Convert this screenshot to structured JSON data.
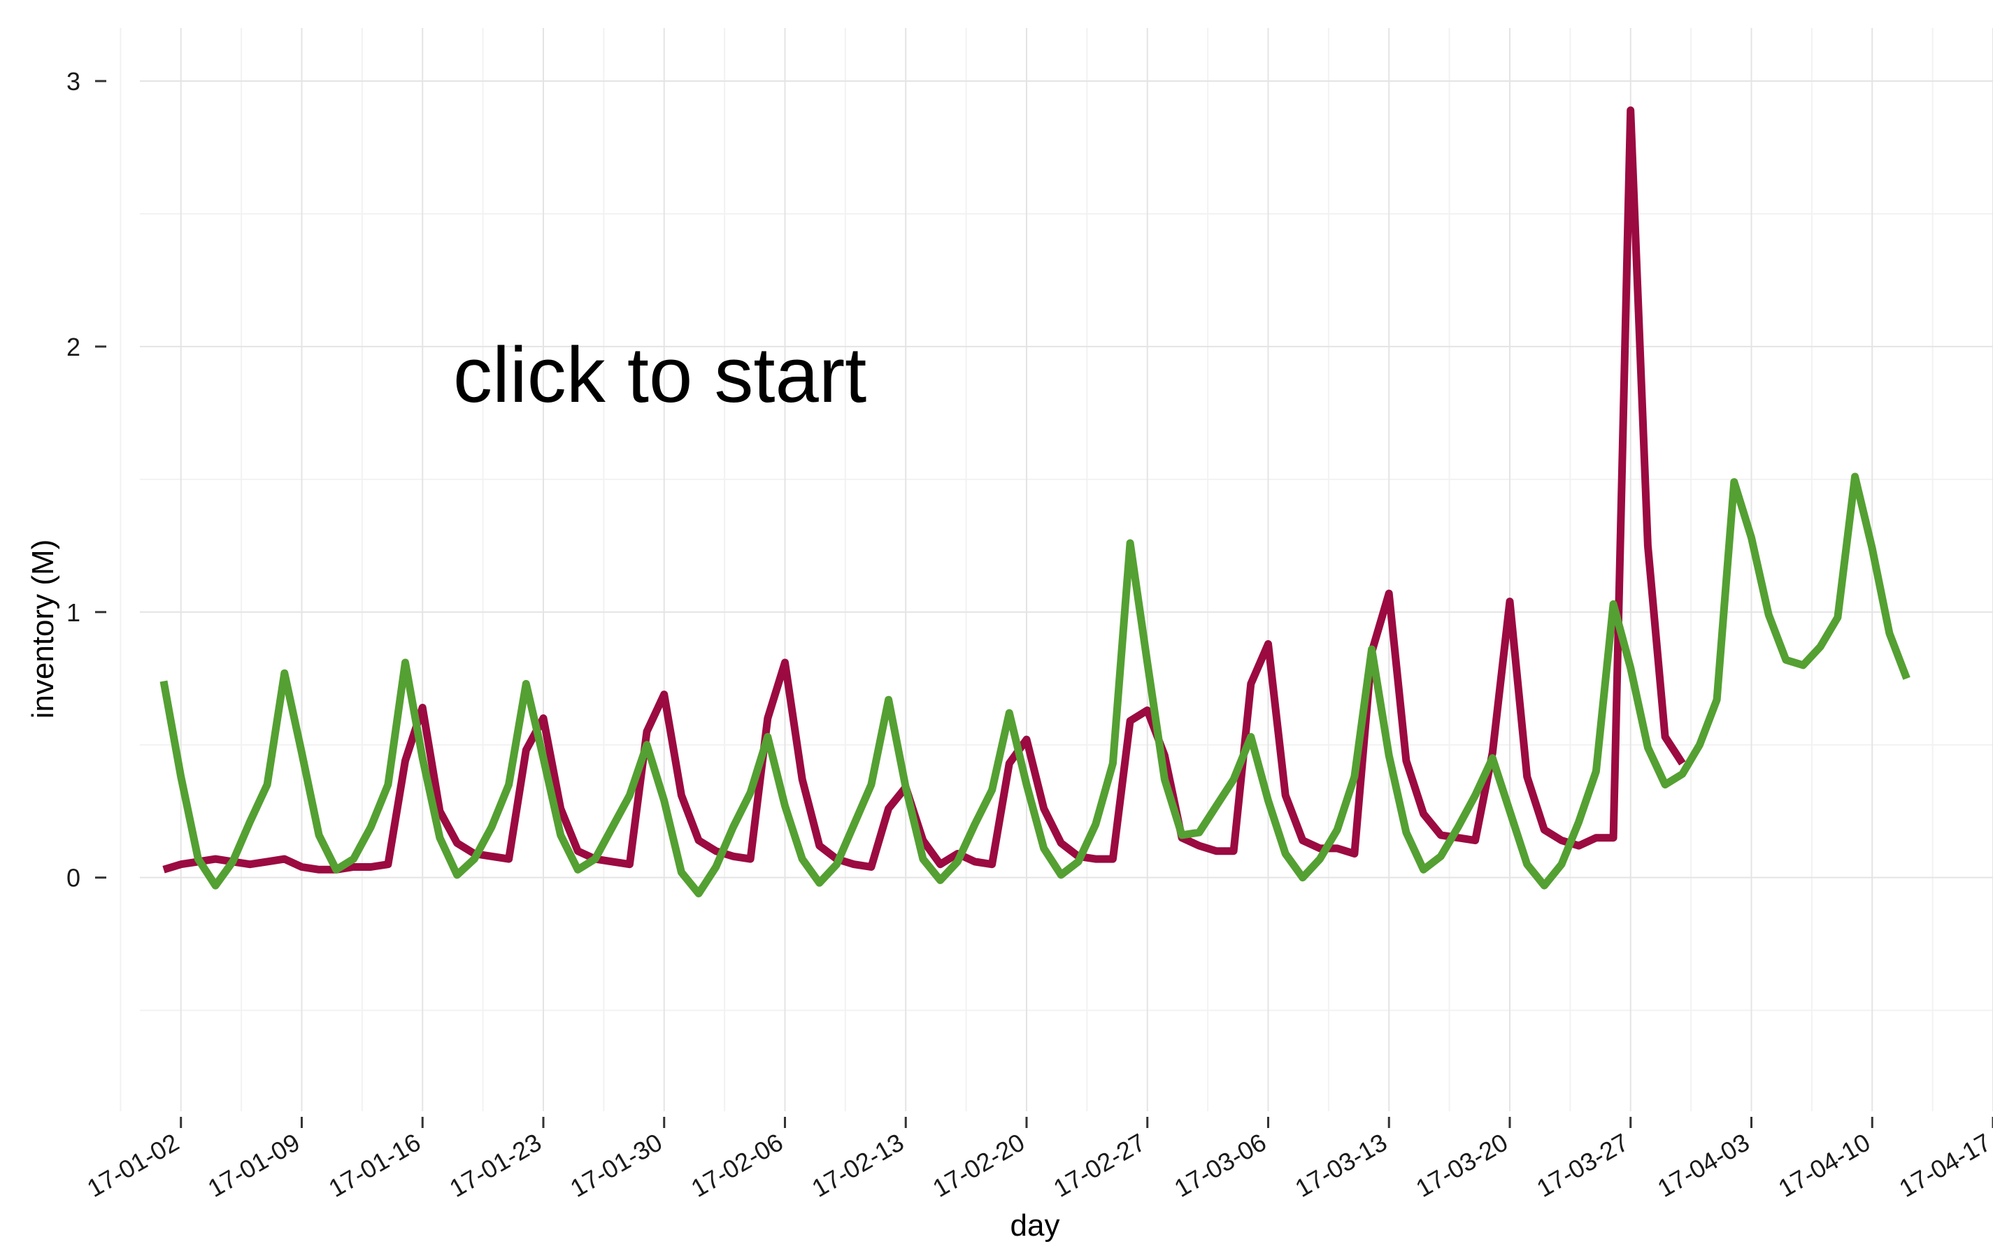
{
  "chart_data": {
    "type": "line",
    "xlabel": "day",
    "ylabel": "inventory (M)",
    "annotation": "click to start",
    "grid": true,
    "legend": "none",
    "x_start": "2017-01-01",
    "x_ticks": [
      "17-01-02",
      "17-01-09",
      "17-01-16",
      "17-01-23",
      "17-01-30",
      "17-02-06",
      "17-02-13",
      "17-02-20",
      "17-02-27",
      "17-03-06",
      "17-03-13",
      "17-03-20",
      "17-03-27",
      "17-04-03",
      "17-04-10",
      "17-04-17"
    ],
    "xlim": [
      "2016-12-29",
      "2017-04-17"
    ],
    "y_ticks": [
      0,
      1,
      2,
      3
    ],
    "ylim": [
      -0.88,
      3.2
    ],
    "series": [
      {
        "color": "#9b0a40",
        "values": [
          0.03,
          0.05,
          0.06,
          0.07,
          0.06,
          0.05,
          0.06,
          0.07,
          0.04,
          0.03,
          0.03,
          0.04,
          0.04,
          0.05,
          0.44,
          0.64,
          0.25,
          0.13,
          0.09,
          0.08,
          0.07,
          0.48,
          0.6,
          0.26,
          0.1,
          0.07,
          0.06,
          0.05,
          0.55,
          0.69,
          0.31,
          0.14,
          0.1,
          0.08,
          0.07,
          0.6,
          0.81,
          0.37,
          0.12,
          0.07,
          0.05,
          0.04,
          0.26,
          0.34,
          0.14,
          0.05,
          0.09,
          0.06,
          0.05,
          0.43,
          0.52,
          0.26,
          0.13,
          0.08,
          0.07,
          0.07,
          0.59,
          0.63,
          0.46,
          0.15,
          0.12,
          0.1,
          0.1,
          0.73,
          0.88,
          0.31,
          0.14,
          0.11,
          0.11,
          0.09,
          0.85,
          1.07,
          0.44,
          0.24,
          0.16,
          0.15,
          0.14,
          0.47,
          1.04,
          0.38,
          0.18,
          0.14,
          0.12,
          0.15,
          0.15,
          2.89,
          1.25,
          0.53,
          0.43
        ]
      },
      {
        "color": "#54a032",
        "values": [
          0.74,
          0.38,
          0.07,
          -0.03,
          0.06,
          0.21,
          0.35,
          0.77,
          0.47,
          0.16,
          0.03,
          0.07,
          0.19,
          0.35,
          0.81,
          0.45,
          0.15,
          0.01,
          0.07,
          0.19,
          0.35,
          0.73,
          0.45,
          0.16,
          0.03,
          0.07,
          0.19,
          0.31,
          0.5,
          0.29,
          0.02,
          -0.06,
          0.04,
          0.19,
          0.32,
          0.53,
          0.27,
          0.07,
          -0.02,
          0.05,
          0.2,
          0.35,
          0.67,
          0.34,
          0.07,
          -0.01,
          0.06,
          0.2,
          0.33,
          0.62,
          0.35,
          0.11,
          0.01,
          0.06,
          0.2,
          0.43,
          1.26,
          0.81,
          0.37,
          0.16,
          0.17,
          0.27,
          0.37,
          0.53,
          0.29,
          0.09,
          0.0,
          0.07,
          0.18,
          0.38,
          0.86,
          0.46,
          0.17,
          0.03,
          0.08,
          0.19,
          0.31,
          0.45,
          0.25,
          0.05,
          -0.03,
          0.05,
          0.21,
          0.4,
          1.03,
          0.79,
          0.49,
          0.35,
          0.39,
          0.5,
          0.67,
          1.49,
          1.28,
          0.99,
          0.82,
          0.8,
          0.87,
          0.98,
          1.51,
          1.24,
          0.92,
          0.75
        ]
      }
    ]
  }
}
